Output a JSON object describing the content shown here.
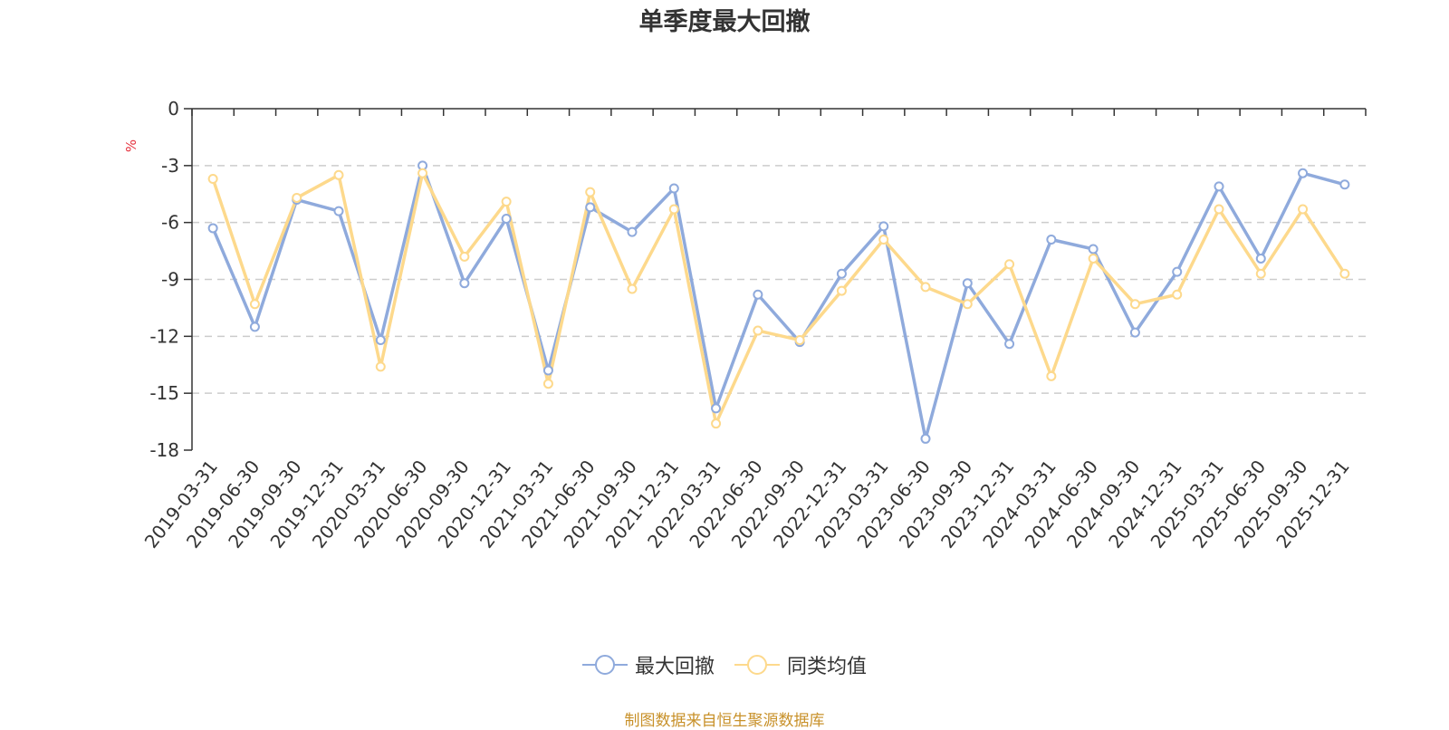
{
  "chart_data": {
    "type": "line",
    "title": "单季度最大回撤",
    "ylabel": "%",
    "xlabel": "",
    "ylim": [
      -18,
      0
    ],
    "yticks": [
      0,
      -3,
      -6,
      -9,
      -12,
      -15,
      -18
    ],
    "categories": [
      "2019-03-31",
      "2019-06-30",
      "2019-09-30",
      "2019-12-31",
      "2020-03-31",
      "2020-06-30",
      "2020-09-30",
      "2020-12-31",
      "2021-03-31",
      "2021-06-30",
      "2021-09-30",
      "2021-12-31",
      "2022-03-31",
      "2022-06-30",
      "2022-09-30",
      "2022-12-31",
      "2023-03-31",
      "2023-06-30",
      "2023-09-30",
      "2023-12-31",
      "2024-03-31",
      "2024-06-30",
      "2024-09-30",
      "2024-12-31",
      "2025-03-31",
      "2025-06-30",
      "2025-09-30",
      "2025-12-31"
    ],
    "series": [
      {
        "name": "最大回撤",
        "color": "#8faadc",
        "values": [
          -6.3,
          -11.5,
          -4.8,
          -5.4,
          -12.2,
          -3.0,
          -9.2,
          -5.8,
          -13.8,
          -5.2,
          -6.5,
          -4.2,
          -15.8,
          -9.8,
          -12.3,
          -8.7,
          -6.2,
          -17.4,
          -9.2,
          -12.4,
          -6.9,
          -7.4,
          -11.8,
          -8.6,
          -4.1,
          -7.9,
          -3.4,
          -4.0
        ]
      },
      {
        "name": "同类均值",
        "color": "#fdd98c",
        "values": [
          -3.7,
          -10.3,
          -4.7,
          -3.5,
          -13.6,
          -3.4,
          -7.8,
          -4.9,
          -14.5,
          -4.4,
          -9.5,
          -5.3,
          -16.6,
          -11.7,
          -12.2,
          -9.6,
          -6.9,
          -9.4,
          -10.3,
          -8.2,
          -14.1,
          -7.9,
          -10.3,
          -9.8,
          -5.3,
          -8.7,
          -5.3,
          -8.7
        ]
      }
    ],
    "legend_position": "bottom-center",
    "grid": "horizontal-dashed"
  },
  "source_note": "制图数据来自恒生聚源数据库"
}
